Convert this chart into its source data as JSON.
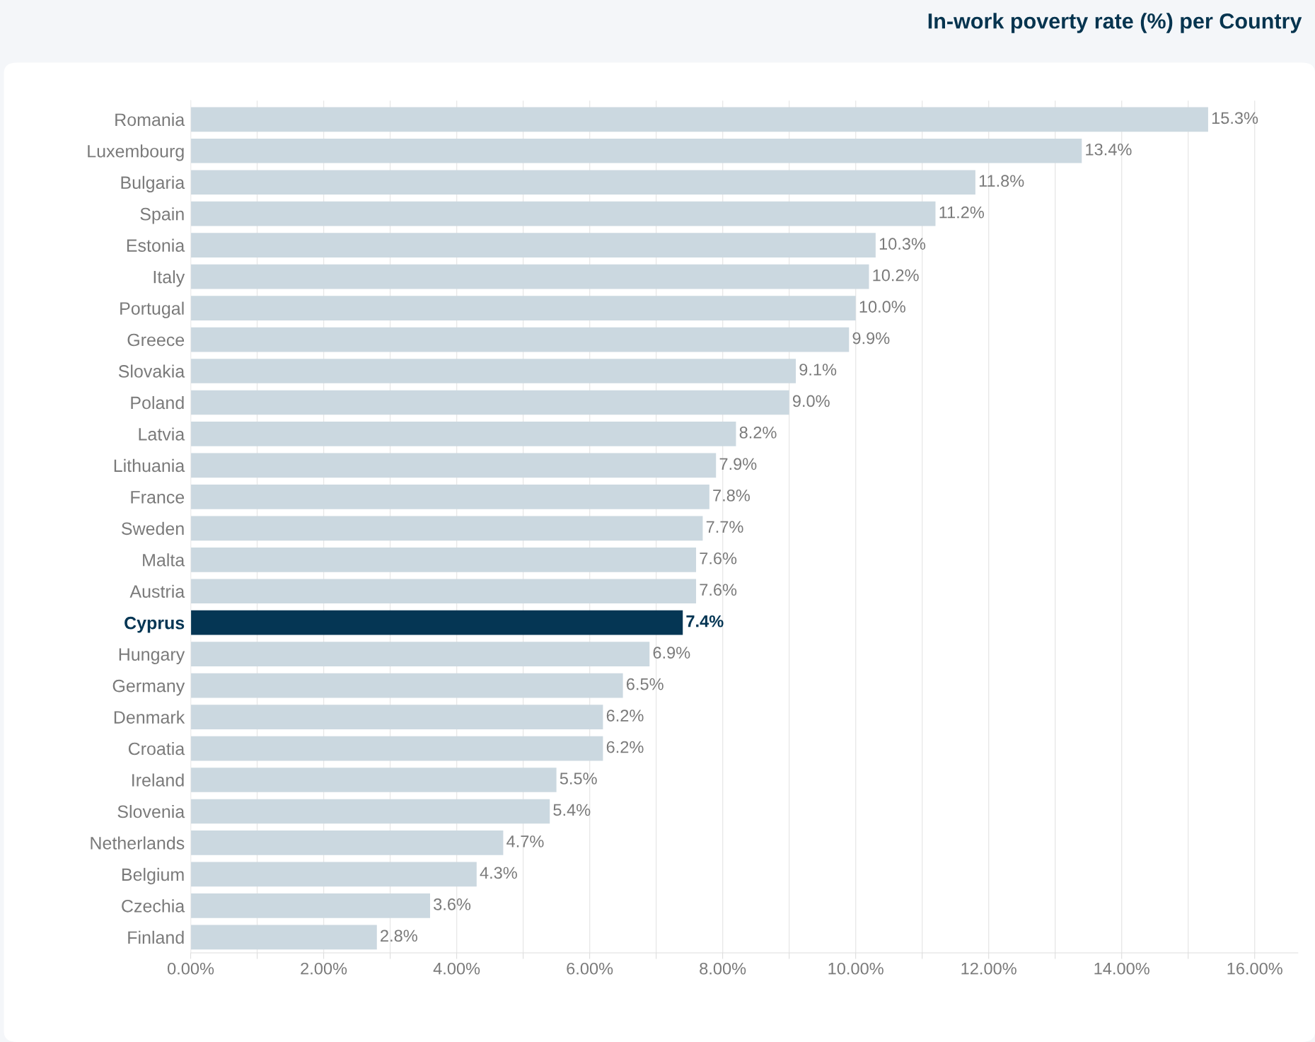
{
  "chart_data": {
    "type": "bar",
    "orientation": "horizontal",
    "title": "In-work poverty rate (%) per Country",
    "categories": [
      "Romania",
      "Luxembourg",
      "Bulgaria",
      "Spain",
      "Estonia",
      "Italy",
      "Portugal",
      "Greece",
      "Slovakia",
      "Poland",
      "Latvia",
      "Lithuania",
      "France",
      "Sweden",
      "Malta",
      "Austria",
      "Cyprus",
      "Hungary",
      "Germany",
      "Denmark",
      "Croatia",
      "Ireland",
      "Slovenia",
      "Netherlands",
      "Belgium",
      "Czechia",
      "Finland"
    ],
    "values": [
      15.3,
      13.4,
      11.8,
      11.2,
      10.3,
      10.2,
      10.0,
      9.9,
      9.1,
      9.0,
      8.2,
      7.9,
      7.8,
      7.7,
      7.6,
      7.6,
      7.4,
      6.9,
      6.5,
      6.2,
      6.2,
      5.5,
      5.4,
      4.7,
      4.3,
      3.6,
      2.8
    ],
    "value_labels": [
      "15.3%",
      "13.4%",
      "11.8%",
      "11.2%",
      "10.3%",
      "10.2%",
      "10.0%",
      "9.9%",
      "9.1%",
      "9.0%",
      "8.2%",
      "7.9%",
      "7.8%",
      "7.7%",
      "7.6%",
      "7.6%",
      "7.4%",
      "6.9%",
      "6.5%",
      "6.2%",
      "6.2%",
      "5.5%",
      "5.4%",
      "4.7%",
      "4.3%",
      "3.6%",
      "2.8%"
    ],
    "colors": [
      "#cbd8e0",
      "#cbd8e0",
      "#cbd8e0",
      "#cbd8e0",
      "#cbd8e0",
      "#cbd8e0",
      "#cbd8e0",
      "#cbd8e0",
      "#cbd8e0",
      "#cbd8e0",
      "#cbd8e0",
      "#cbd8e0",
      "#cbd8e0",
      "#cbd8e0",
      "#cbd8e0",
      "#cbd8e0",
      "#053654",
      "#cbd8e0",
      "#cbd8e0",
      "#cbd8e0",
      "#cbd8e0",
      "#cbd8e0",
      "#cbd8e0",
      "#cbd8e0",
      "#cbd8e0",
      "#cbd8e0",
      "#cbd8e0"
    ],
    "xlim": [
      0,
      16.65
    ],
    "xticks": [
      {
        "value": 0,
        "label": "0.00%"
      },
      {
        "value": 1,
        "label": null
      },
      {
        "value": 2,
        "label": "2.00%"
      },
      {
        "value": 3,
        "label": null
      },
      {
        "value": 4,
        "label": "4.00%"
      },
      {
        "value": 5,
        "label": null
      },
      {
        "value": 6,
        "label": "6.00%"
      },
      {
        "value": 7,
        "label": null
      },
      {
        "value": 8,
        "label": "8.00%"
      },
      {
        "value": 9,
        "label": null
      },
      {
        "value": 10,
        "label": "10.00%"
      },
      {
        "value": 11,
        "label": null
      },
      {
        "value": 12,
        "label": "12.00%"
      },
      {
        "value": 13,
        "label": null
      },
      {
        "value": 14,
        "label": "14.00%"
      },
      {
        "value": 15,
        "label": null
      },
      {
        "value": 16,
        "label": "16.00%"
      }
    ],
    "grid": "x",
    "legend": false
  }
}
